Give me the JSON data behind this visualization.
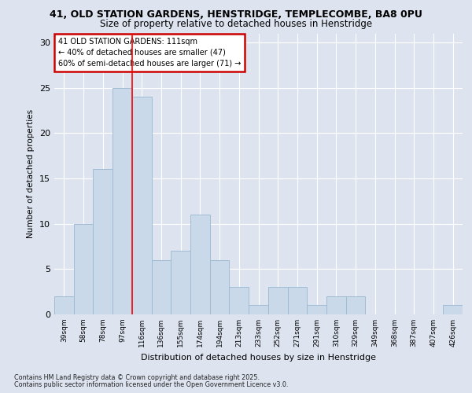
{
  "title1": "41, OLD STATION GARDENS, HENSTRIDGE, TEMPLECOMBE, BA8 0PU",
  "title2": "Size of property relative to detached houses in Henstridge",
  "xlabel": "Distribution of detached houses by size in Henstridge",
  "ylabel": "Number of detached properties",
  "categories": [
    "39sqm",
    "58sqm",
    "78sqm",
    "97sqm",
    "116sqm",
    "136sqm",
    "155sqm",
    "174sqm",
    "194sqm",
    "213sqm",
    "233sqm",
    "252sqm",
    "271sqm",
    "291sqm",
    "310sqm",
    "329sqm",
    "349sqm",
    "368sqm",
    "387sqm",
    "407sqm",
    "426sqm"
  ],
  "values": [
    2,
    10,
    16,
    25,
    24,
    6,
    7,
    11,
    6,
    3,
    1,
    3,
    3,
    1,
    2,
    2,
    0,
    0,
    0,
    0,
    1
  ],
  "bar_color": "#c9d9ea",
  "bar_edge_color": "#a0bcd4",
  "red_line_x": 3.5,
  "annotation_title": "41 OLD STATION GARDENS: 111sqm",
  "annotation_line1": "← 40% of detached houses are smaller (47)",
  "annotation_line2": "60% of semi-detached houses are larger (71) →",
  "annotation_box_color": "#ffffff",
  "annotation_box_edge_color": "#cc0000",
  "ylim": [
    0,
    31
  ],
  "yticks": [
    0,
    5,
    10,
    15,
    20,
    25,
    30
  ],
  "footnote1": "Contains HM Land Registry data © Crown copyright and database right 2025.",
  "footnote2": "Contains public sector information licensed under the Open Government Licence v3.0.",
  "bg_color": "#dde4f0",
  "plot_bg_color": "#dde4f0"
}
